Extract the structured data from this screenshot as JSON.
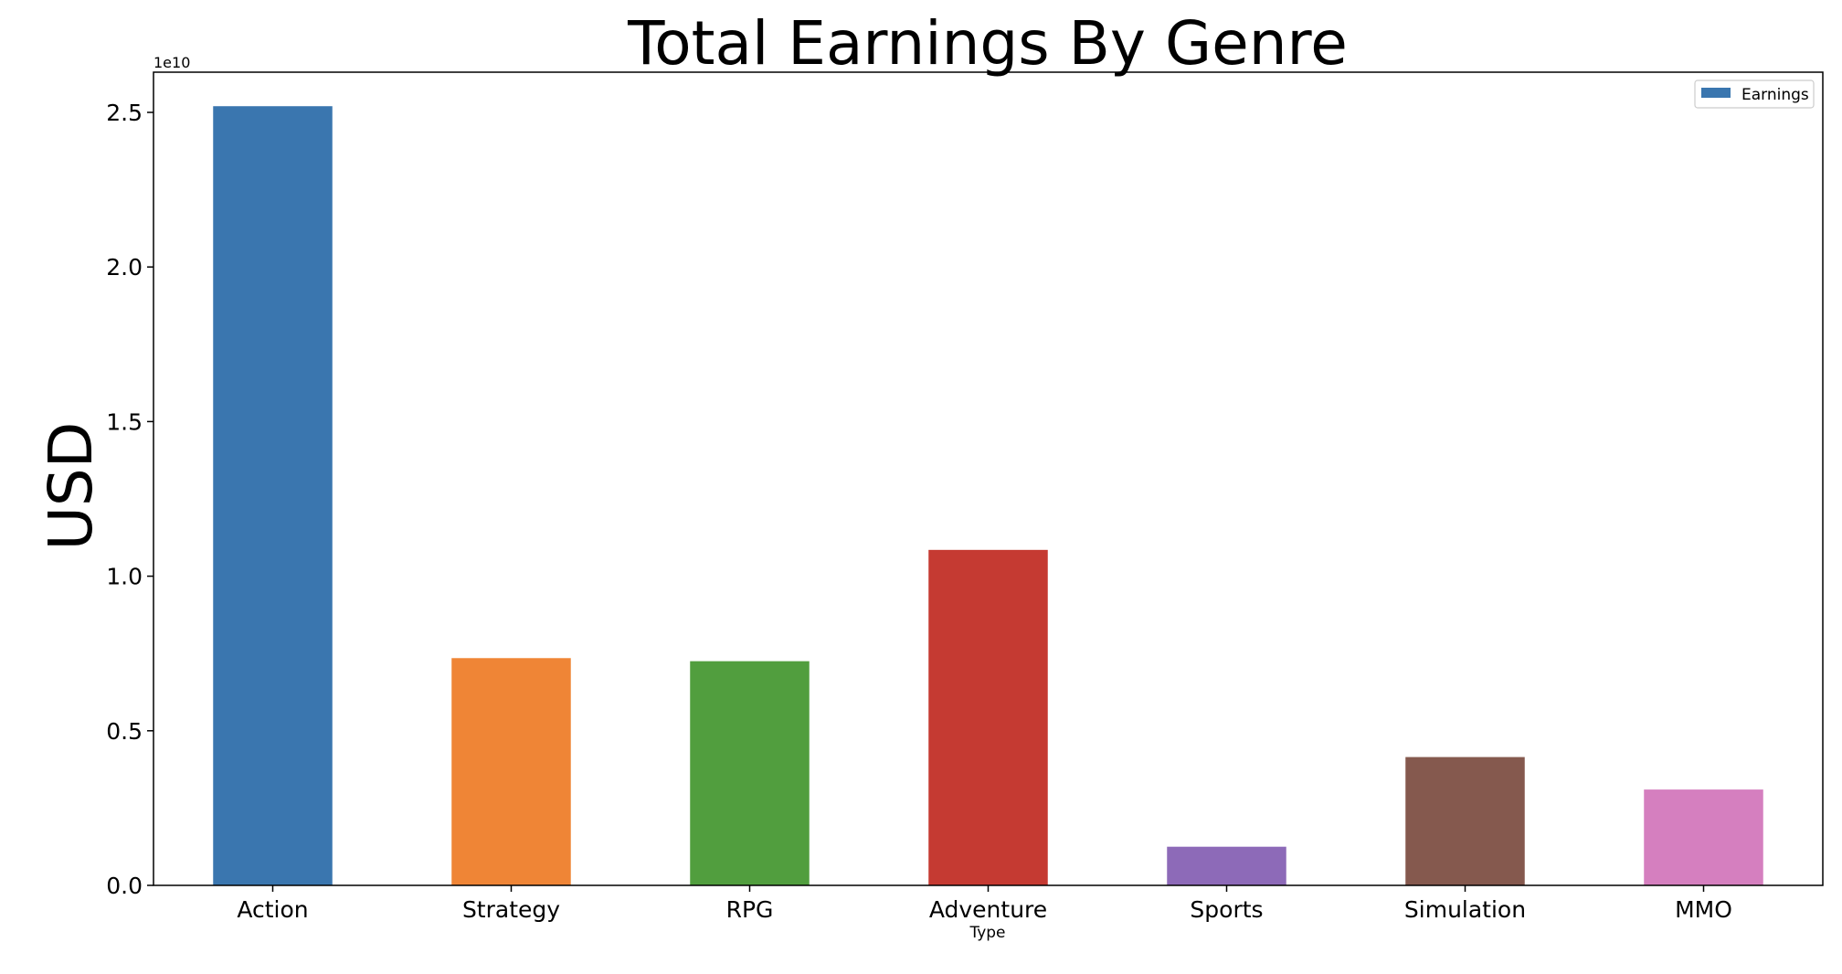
{
  "chart_data": {
    "type": "bar",
    "title": "Total Earnings By Genre",
    "xlabel": "Type",
    "ylabel": "USD",
    "y_offset_label": "1e10",
    "categories": [
      "Action",
      "Strategy",
      "RPG",
      "Adventure",
      "Sports",
      "Simulation",
      "MMO"
    ],
    "values": [
      25200000000,
      7350000000,
      7250000000,
      10850000000,
      1250000000,
      4150000000,
      3100000000
    ],
    "colors": [
      "#3a76af",
      "#ef8536",
      "#519e3e",
      "#c53a32",
      "#8d6ab8",
      "#85594e",
      "#d57fbf"
    ],
    "ylim": [
      0,
      26300000000
    ],
    "yticks": [
      0,
      5000000000,
      10000000000,
      15000000000,
      20000000000,
      25000000000
    ],
    "ytick_labels": [
      "0.0",
      "0.5",
      "1.0",
      "1.5",
      "2.0",
      "2.5"
    ],
    "legend": {
      "label": "Earnings",
      "position": "top-right",
      "color": "#3a76af"
    },
    "grid": false
  }
}
